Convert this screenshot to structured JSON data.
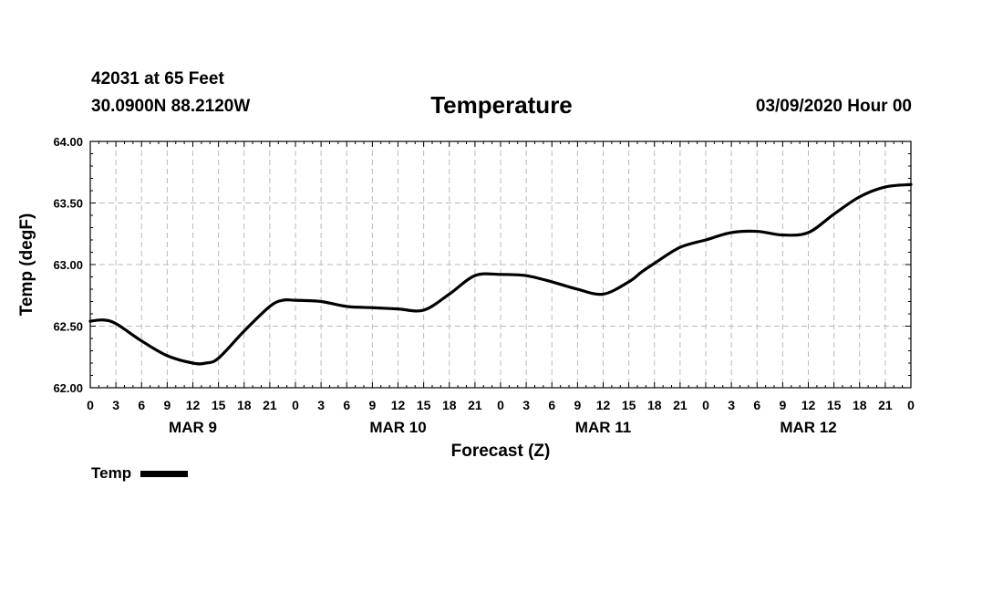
{
  "header": {
    "station": "42031 at 65 Feet",
    "coordinates": "30.0900N 88.2120W",
    "title": "Temperature",
    "date": "03/09/2020 Hour 00"
  },
  "chart_data": {
    "type": "line",
    "title": "Temperature",
    "xlabel": "Forecast (Z)",
    "ylabel": "Temp (degF)",
    "ylim": [
      62.0,
      64.0
    ],
    "yticks": [
      "62.00",
      "62.50",
      "63.00",
      "63.50",
      "64.00"
    ],
    "xlim": [
      0,
      96
    ],
    "xtick_hours": [
      0,
      3,
      6,
      9,
      12,
      15,
      18,
      21,
      24,
      27,
      30,
      33,
      36,
      39,
      42,
      45,
      48,
      51,
      54,
      57,
      60,
      63,
      66,
      69,
      72,
      75,
      78,
      81,
      84,
      87,
      90,
      93,
      96
    ],
    "xtick_labels": [
      "0",
      "3",
      "6",
      "9",
      "12",
      "15",
      "18",
      "21",
      "0",
      "3",
      "6",
      "9",
      "12",
      "15",
      "18",
      "21",
      "0",
      "3",
      "6",
      "9",
      "12",
      "15",
      "18",
      "21",
      "0",
      "3",
      "6",
      "9",
      "12",
      "15",
      "18",
      "21",
      "0"
    ],
    "day_labels": [
      {
        "label": "MAR 9",
        "hour": 12
      },
      {
        "label": "MAR 10",
        "hour": 36
      },
      {
        "label": "MAR 11",
        "hour": 60
      },
      {
        "label": "MAR 12",
        "hour": 84
      }
    ],
    "grid": true,
    "legend_position": "bottom-left",
    "series": [
      {
        "name": "Temp",
        "color": "#000000",
        "x": [
          0,
          1.5,
          3,
          6,
          9,
          12,
          13.5,
          15,
          18,
          21,
          22.5,
          24,
          27,
          30,
          33,
          36,
          39,
          42,
          45,
          48,
          51,
          54,
          57,
          60,
          63,
          64.5,
          66,
          69,
          72,
          75,
          78,
          81,
          84,
          87,
          90,
          93,
          96
        ],
        "y": [
          62.54,
          62.55,
          62.52,
          62.38,
          62.26,
          62.2,
          62.2,
          62.24,
          62.46,
          62.66,
          62.71,
          62.71,
          62.7,
          62.66,
          62.65,
          62.64,
          62.63,
          62.76,
          62.91,
          62.92,
          62.91,
          62.86,
          62.8,
          62.76,
          62.86,
          62.94,
          63.01,
          63.14,
          63.2,
          63.26,
          63.27,
          63.24,
          63.26,
          63.41,
          63.55,
          63.63,
          63.65
        ]
      }
    ]
  }
}
